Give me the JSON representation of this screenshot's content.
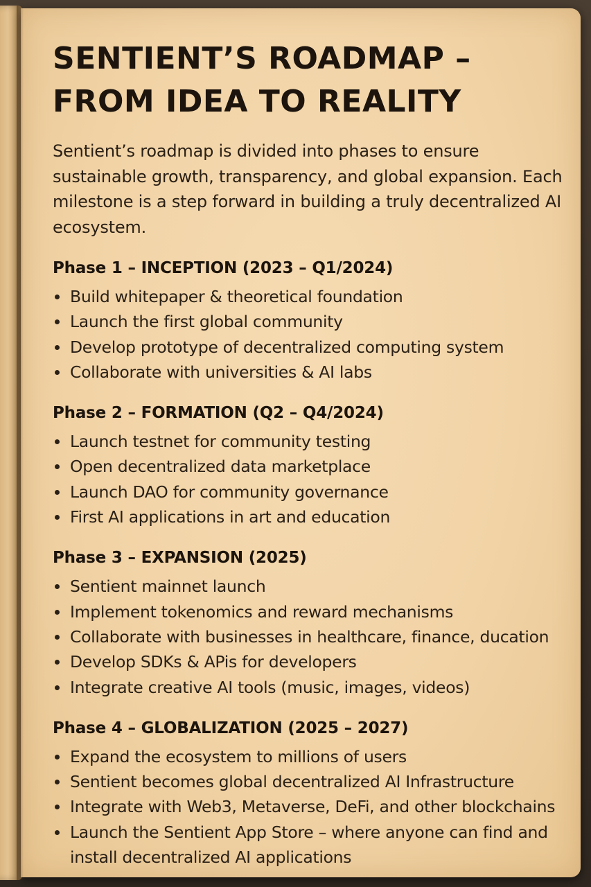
{
  "title_lines": [
    "SENTIENT’S ROADMAP –",
    "FROM IDEA TO REALITY"
  ],
  "intro": "Sentient’s roadmap is divided into phases to ensure sustainable growth, transparency, and global expansion. Each milestone is a step forward in building a truly decentralized AI ecosystem.",
  "phases": [
    {
      "title": "Phase 1 – INCEPTION (2023 – Q1/2024)",
      "items": [
        "Build whitepaper & theoretical foundation",
        "Launch the first global community",
        "Develop prototype of decentralized computing system",
        "Collaborate with universities & AI labs"
      ]
    },
    {
      "title": "Phase 2 – FORMATION (Q2 – Q4/2024)",
      "items": [
        "Launch testnet for community testing",
        "Open decentralized data marketplace",
        "Launch DAO for community governance",
        "First AI applications in art and education"
      ]
    },
    {
      "title": "Phase 3 – EXPANSION (2025)",
      "items": [
        "Sentient mainnet launch",
        "Implement tokenomics and reward mechanisms",
        "Collaborate with businesses in healthcare, finance, ducation",
        "Develop SDKs & APis for developers",
        "Integrate creative AI tools (music, images, videos)"
      ]
    },
    {
      "title": "Phase 4 – GLOBALIZATION (2025 – 2027)",
      "items": [
        "Expand the ecosystem to millions of users",
        "Sentient becomes global decentralized AI Infrastructure",
        "Integrate with Web3, Metaverse, DeFi, and other blockchains",
        "Launch the Sentient App Store – where anyone can find and install decentralized AI applications"
      ]
    }
  ],
  "colors": {
    "paper": "#f1d3a6",
    "ink": "#231a12",
    "background": "#3a3027"
  }
}
